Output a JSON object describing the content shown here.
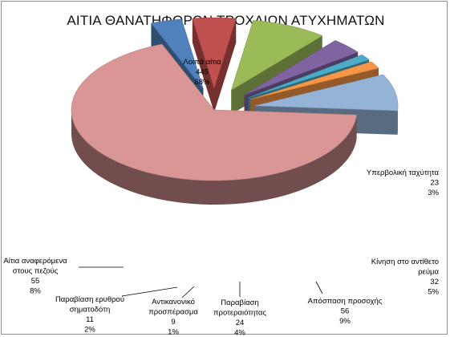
{
  "chart_data": {
    "type": "pie",
    "title": "ΑΙΤΙΑ ΘΑΝΑΤΗΦΟΡΩΝ ΤΡΟΧΑΙΩΝ ΑΤΥΧΗΜΑΤΩΝ",
    "legend": "none",
    "three_d": true,
    "slices": [
      {
        "label": "Λοιπά αίτια",
        "value": 445,
        "percent": "68%",
        "color": "#d99694",
        "exploded": false
      },
      {
        "label": "Υπερβολική ταχύτητα",
        "value": 23,
        "percent": "3%",
        "color": "#4f81bd",
        "exploded": true
      },
      {
        "label": "Κίνηση στο αντίθετο ρεύμα",
        "value": 32,
        "percent": "5%",
        "color": "#c0504d",
        "exploded": true
      },
      {
        "label": "Απόσπαση προσοχής",
        "value": 56,
        "percent": "9%",
        "color": "#9bbb59",
        "exploded": true
      },
      {
        "label": "Παραβίαση προτεραιότητας",
        "value": 24,
        "percent": "4%",
        "color": "#8064a2",
        "exploded": true
      },
      {
        "label": "Αντικανονικό προσπέρασμα",
        "value": 9,
        "percent": "1%",
        "color": "#4bacc6",
        "exploded": true
      },
      {
        "label": "Παραβίαση ερυθρού σηματοδότη",
        "value": 11,
        "percent": "2%",
        "color": "#f79646",
        "exploded": true
      },
      {
        "label": "Αίτια αναφερόμενα στους πεζούς",
        "value": 55,
        "percent": "8%",
        "color": "#95b3d7",
        "exploded": true
      }
    ]
  }
}
